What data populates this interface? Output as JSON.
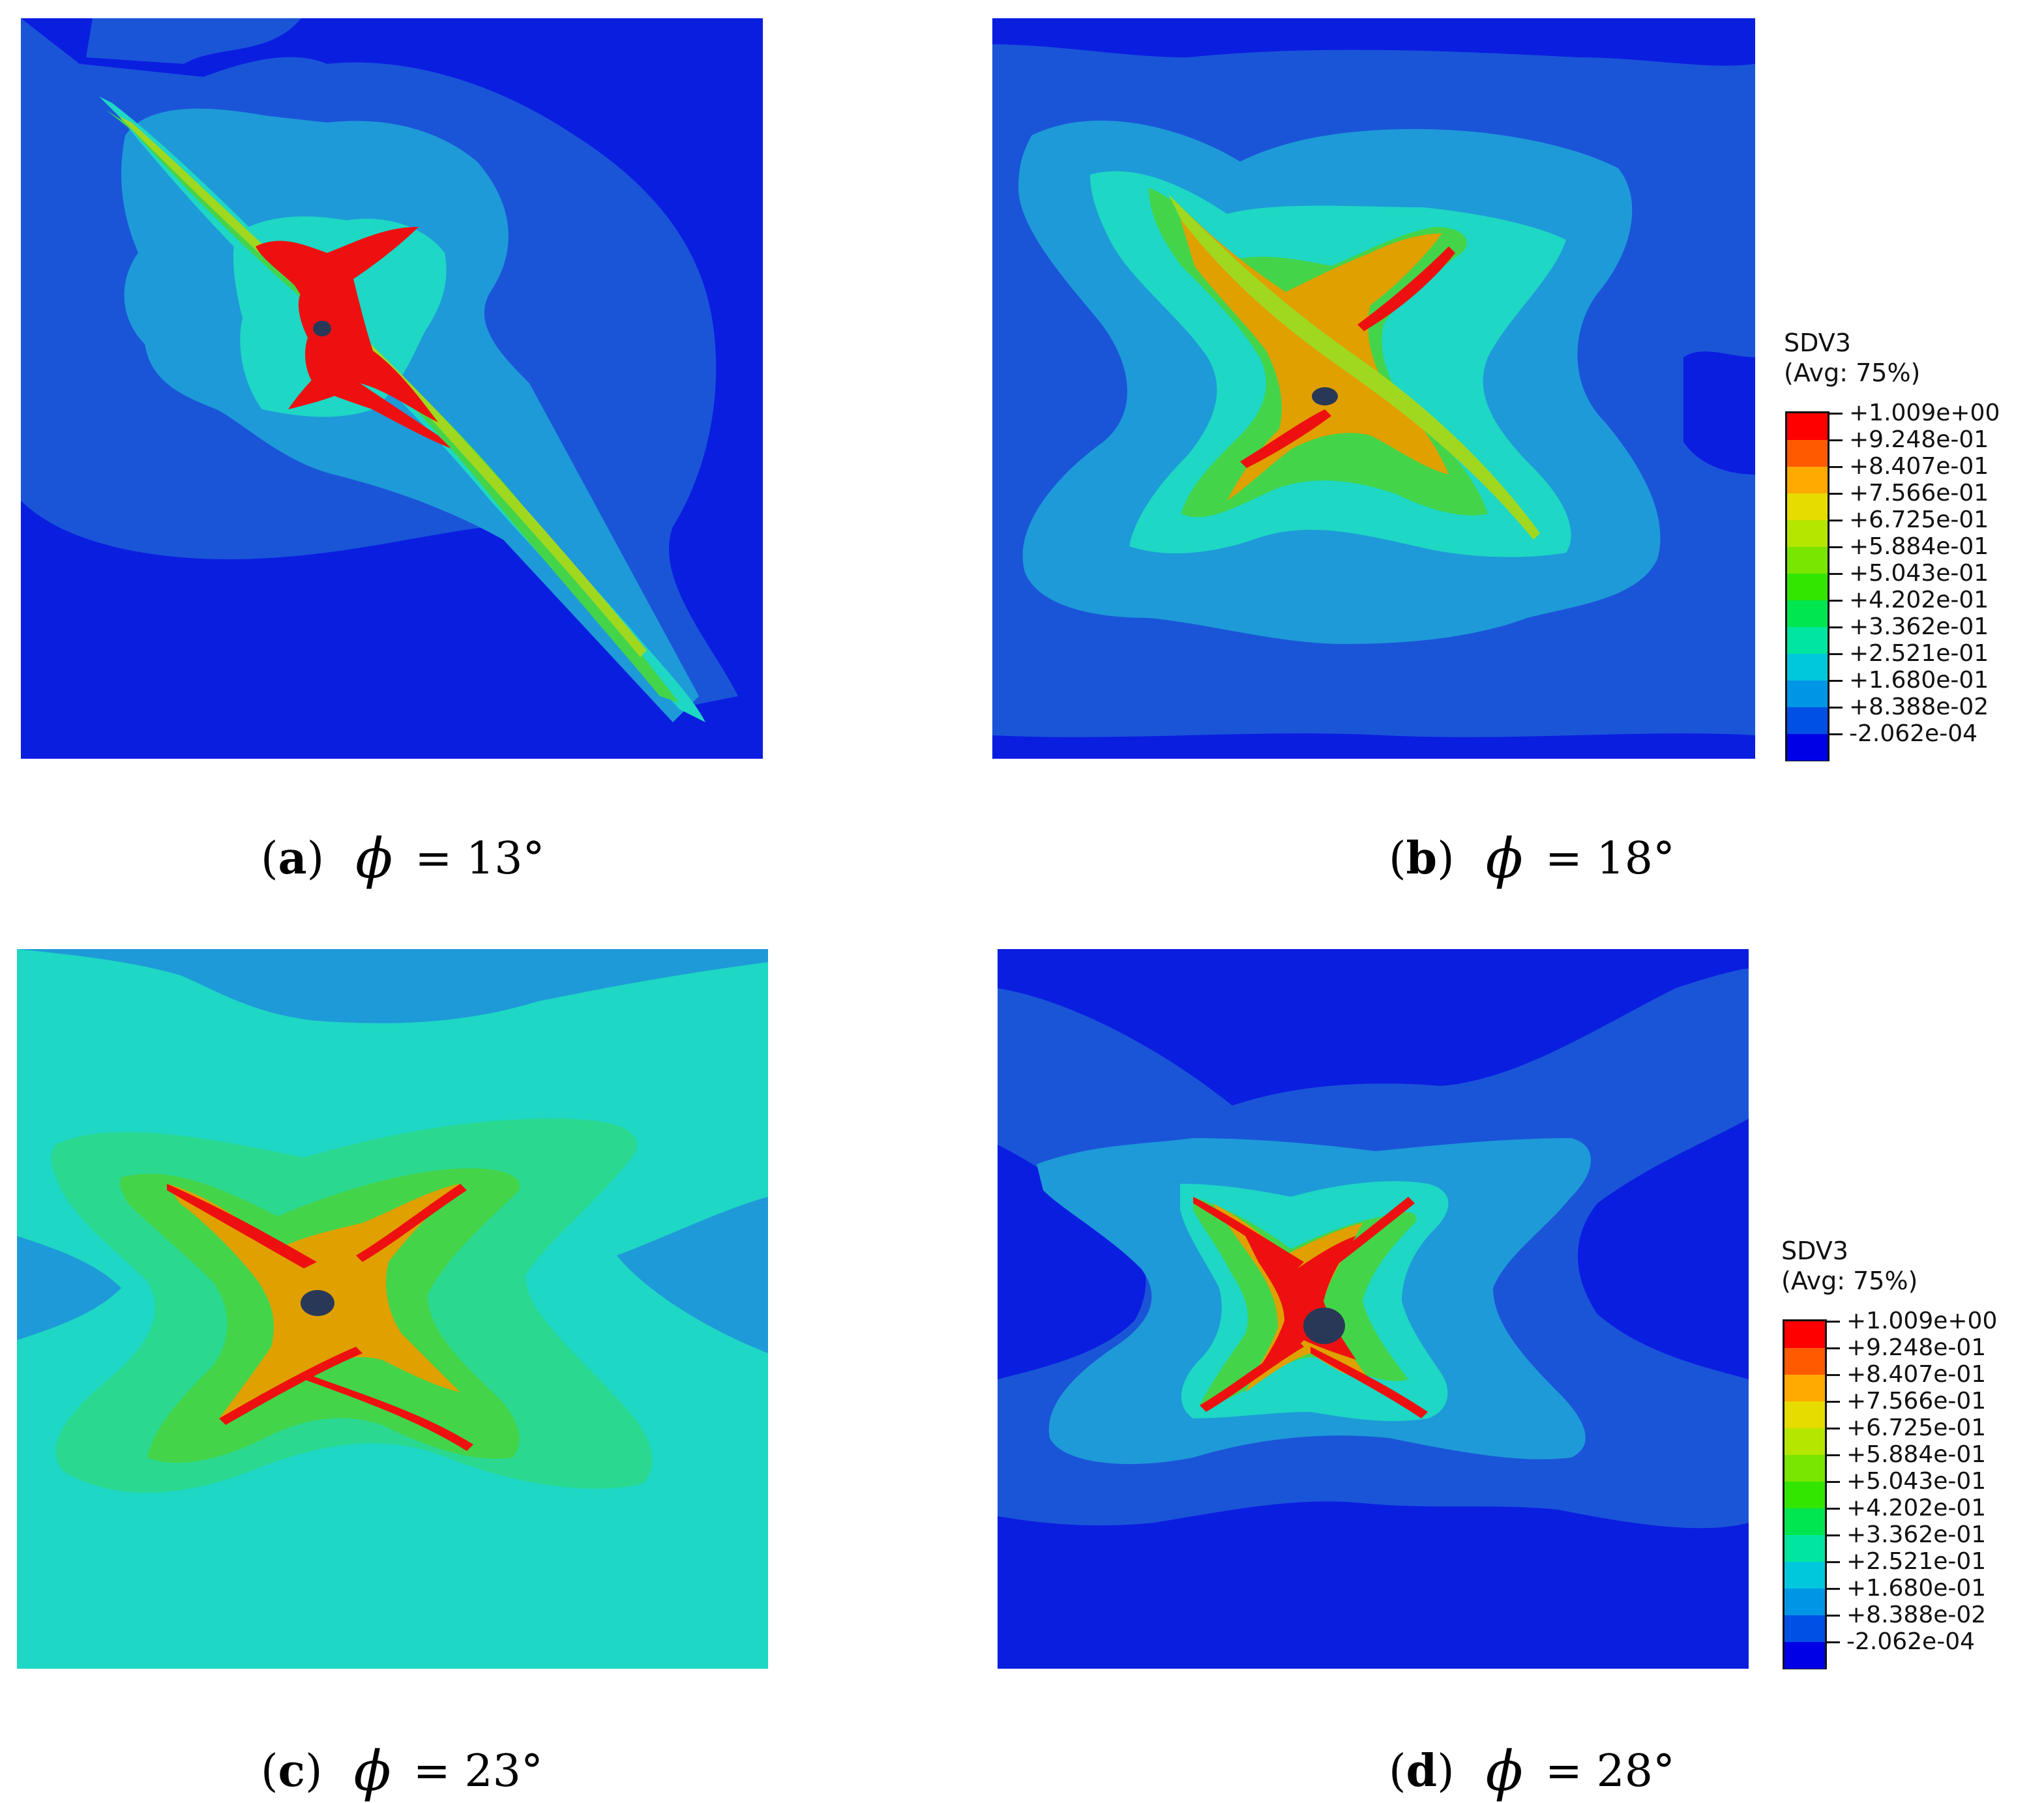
{
  "figure": {
    "panels": [
      {
        "id": "a",
        "label": "a",
        "phi_text": "= 13°"
      },
      {
        "id": "b",
        "label": "b",
        "phi_text": "= 18°"
      },
      {
        "id": "c",
        "label": "c",
        "phi_text": "= 23°"
      },
      {
        "id": "d",
        "label": "d",
        "phi_text": "= 28°"
      }
    ],
    "phi_symbol": "ϕ",
    "legend": {
      "variable": "SDV3",
      "averaging": "(Avg: 75%)",
      "values": [
        "+1.009e+00",
        "+9.248e-01",
        "+8.407e-01",
        "+7.566e-01",
        "+6.725e-01",
        "+5.884e-01",
        "+5.043e-01",
        "+4.202e-01",
        "+3.362e-01",
        "+2.521e-01",
        "+1.680e-01",
        "+8.388e-02",
        "-2.062e-04"
      ],
      "colors": [
        "#ff0000",
        "#ff5a00",
        "#ffaa00",
        "#e6dc00",
        "#b4e600",
        "#78e600",
        "#32e600",
        "#00e650",
        "#00e6a0",
        "#00c8dc",
        "#0096e6",
        "#0050e6",
        "#0000e6"
      ]
    },
    "contour_colors": {
      "deep_blue": "#0a1ee0",
      "blue": "#1a55d8",
      "light_blue": "#1e9ad8",
      "cyan": "#1ed7c4",
      "green_cyan": "#2ad890",
      "green": "#44d44a",
      "yellow_green": "#a0d820",
      "orange": "#dfa000",
      "red": "#ee1010",
      "hole": "#2a3858"
    }
  }
}
